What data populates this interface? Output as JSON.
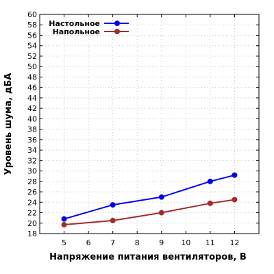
{
  "chart_data": {
    "type": "line",
    "title": "",
    "xlabel": "Напряжение питания вентиляторов, В",
    "ylabel": "Уровень шума, дБА",
    "xlim": [
      4,
      13
    ],
    "ylim": [
      18,
      60
    ],
    "x_ticks": [
      5,
      6,
      7,
      8,
      9,
      10,
      11,
      12
    ],
    "y_ticks": [
      18,
      20,
      22,
      24,
      26,
      28,
      30,
      32,
      34,
      36,
      38,
      40,
      42,
      44,
      46,
      48,
      50,
      52,
      54,
      56,
      58,
      60
    ],
    "grid": true,
    "legend": "top-left",
    "series": [
      {
        "name": "Настольное",
        "color": "#0000ee",
        "points": [
          [
            5,
            20.8
          ],
          [
            7,
            23.5
          ],
          [
            9,
            25.0
          ],
          [
            11,
            28.0
          ],
          [
            12,
            29.2
          ]
        ]
      },
      {
        "name": "Напольное",
        "color": "#a52a2a",
        "points": [
          [
            5,
            19.7
          ],
          [
            7,
            20.5
          ],
          [
            9,
            22.0
          ],
          [
            11,
            23.8
          ],
          [
            12,
            24.5
          ]
        ]
      }
    ]
  }
}
